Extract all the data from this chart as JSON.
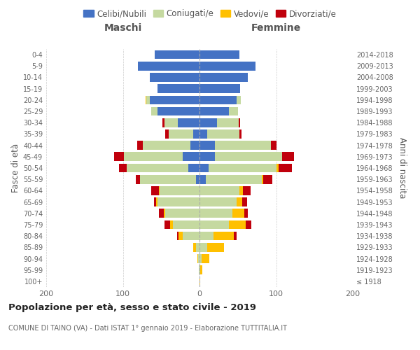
{
  "age_groups": [
    "100+",
    "95-99",
    "90-94",
    "85-89",
    "80-84",
    "75-79",
    "70-74",
    "65-69",
    "60-64",
    "55-59",
    "50-54",
    "45-49",
    "40-44",
    "35-39",
    "30-34",
    "25-29",
    "20-24",
    "15-19",
    "10-14",
    "5-9",
    "0-4"
  ],
  "birth_years": [
    "≤ 1918",
    "1919-1923",
    "1924-1928",
    "1929-1933",
    "1934-1938",
    "1939-1943",
    "1944-1948",
    "1949-1953",
    "1954-1958",
    "1959-1963",
    "1964-1968",
    "1969-1973",
    "1974-1978",
    "1979-1983",
    "1984-1988",
    "1989-1993",
    "1994-1998",
    "1999-2003",
    "2004-2008",
    "2009-2013",
    "2014-2018"
  ],
  "maschi_celibi": [
    0,
    0,
    0,
    0,
    0,
    0,
    0,
    0,
    0,
    5,
    15,
    22,
    12,
    8,
    28,
    55,
    65,
    55,
    65,
    80,
    58
  ],
  "maschi_coniugati": [
    0,
    1,
    2,
    5,
    22,
    35,
    45,
    55,
    52,
    73,
    80,
    77,
    62,
    32,
    18,
    8,
    4,
    0,
    0,
    0,
    0
  ],
  "maschi_vedovi": [
    0,
    0,
    1,
    3,
    5,
    3,
    2,
    2,
    1,
    0,
    0,
    0,
    0,
    0,
    0,
    0,
    1,
    0,
    0,
    0,
    0
  ],
  "maschi_divorziati": [
    0,
    0,
    0,
    0,
    2,
    8,
    6,
    2,
    10,
    5,
    10,
    12,
    7,
    5,
    2,
    0,
    0,
    0,
    0,
    0,
    0
  ],
  "femmine_celibi": [
    0,
    0,
    0,
    0,
    0,
    0,
    0,
    0,
    0,
    8,
    12,
    20,
    20,
    10,
    23,
    38,
    48,
    53,
    63,
    73,
    52
  ],
  "femmine_coniugati": [
    0,
    1,
    3,
    10,
    18,
    38,
    43,
    48,
    52,
    73,
    88,
    88,
    73,
    42,
    28,
    12,
    6,
    0,
    0,
    0,
    0
  ],
  "femmine_vedovi": [
    1,
    3,
    10,
    22,
    27,
    22,
    15,
    8,
    5,
    2,
    3,
    0,
    0,
    0,
    0,
    0,
    0,
    0,
    0,
    0,
    0
  ],
  "femmine_divorziati": [
    0,
    0,
    0,
    0,
    3,
    8,
    5,
    6,
    10,
    12,
    18,
    15,
    7,
    3,
    2,
    0,
    0,
    0,
    0,
    0,
    0
  ],
  "color_celibi": "#4472c4",
  "color_coniugati": "#c5d9a0",
  "color_vedovi": "#ffc000",
  "color_divorziati": "#c0000c",
  "title": "Popolazione per età, sesso e stato civile - 2019",
  "subtitle": "COMUNE DI TAINO (VA) - Dati ISTAT 1° gennaio 2019 - Elaborazione TUTTITALIA.IT",
  "xlabel_left": "Maschi",
  "xlabel_right": "Femmine",
  "ylabel_left": "Fasce di età",
  "ylabel_right": "Anni di nascita",
  "xlim": 200,
  "background_color": "#ffffff",
  "legend_labels": [
    "Celibi/Nubili",
    "Coniugati/e",
    "Vedovi/e",
    "Divorziati/e"
  ]
}
